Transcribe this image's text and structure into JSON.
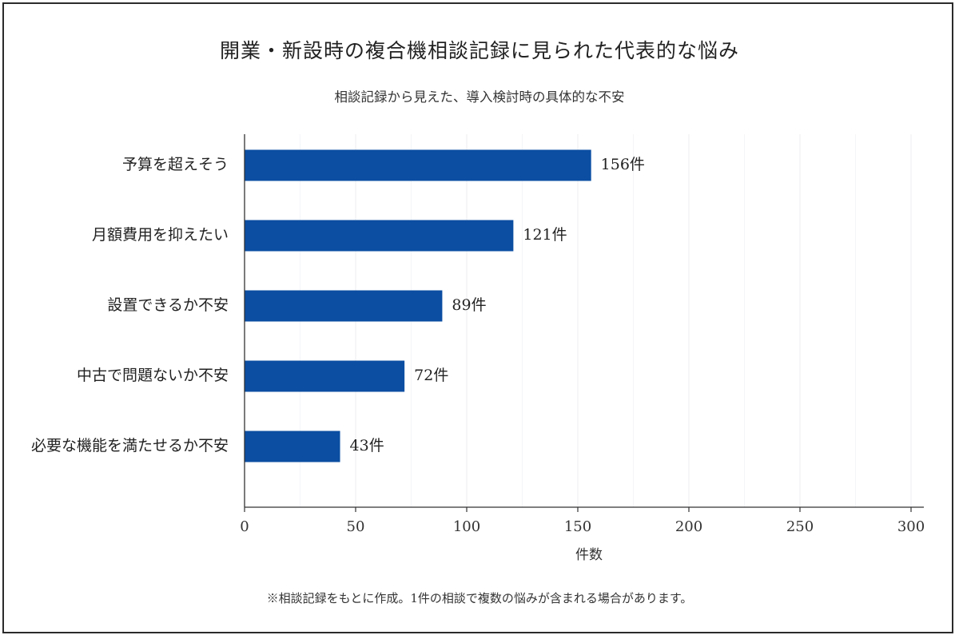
{
  "chart_data": {
    "type": "bar",
    "orientation": "horizontal",
    "title": "開業・新設時の複合機相談記録に見られた代表的な悩み",
    "subtitle": "相談記録から見えた、導入検討時の具体的な不安",
    "categories": [
      "予算を超えそう",
      "月額費用を抑えたい",
      "設置できるか不安",
      "中古で問題ないか不安",
      "必要な機能を満たせるか不安"
    ],
    "values": [
      156,
      121,
      89,
      72,
      43
    ],
    "value_labels": [
      "156件",
      "121件",
      "89件",
      "72件",
      "43件"
    ],
    "value_unit": "件",
    "xlabel": "件数",
    "ylabel": "",
    "xlim": [
      0,
      300
    ],
    "xticks": [
      0,
      50,
      100,
      150,
      200,
      250,
      300
    ],
    "grid": true,
    "bar_color": "#0b4ea2",
    "footnote": "※相談記録をもとに作成。1件の相談で複数の悩みが含まれる場合があります。"
  }
}
